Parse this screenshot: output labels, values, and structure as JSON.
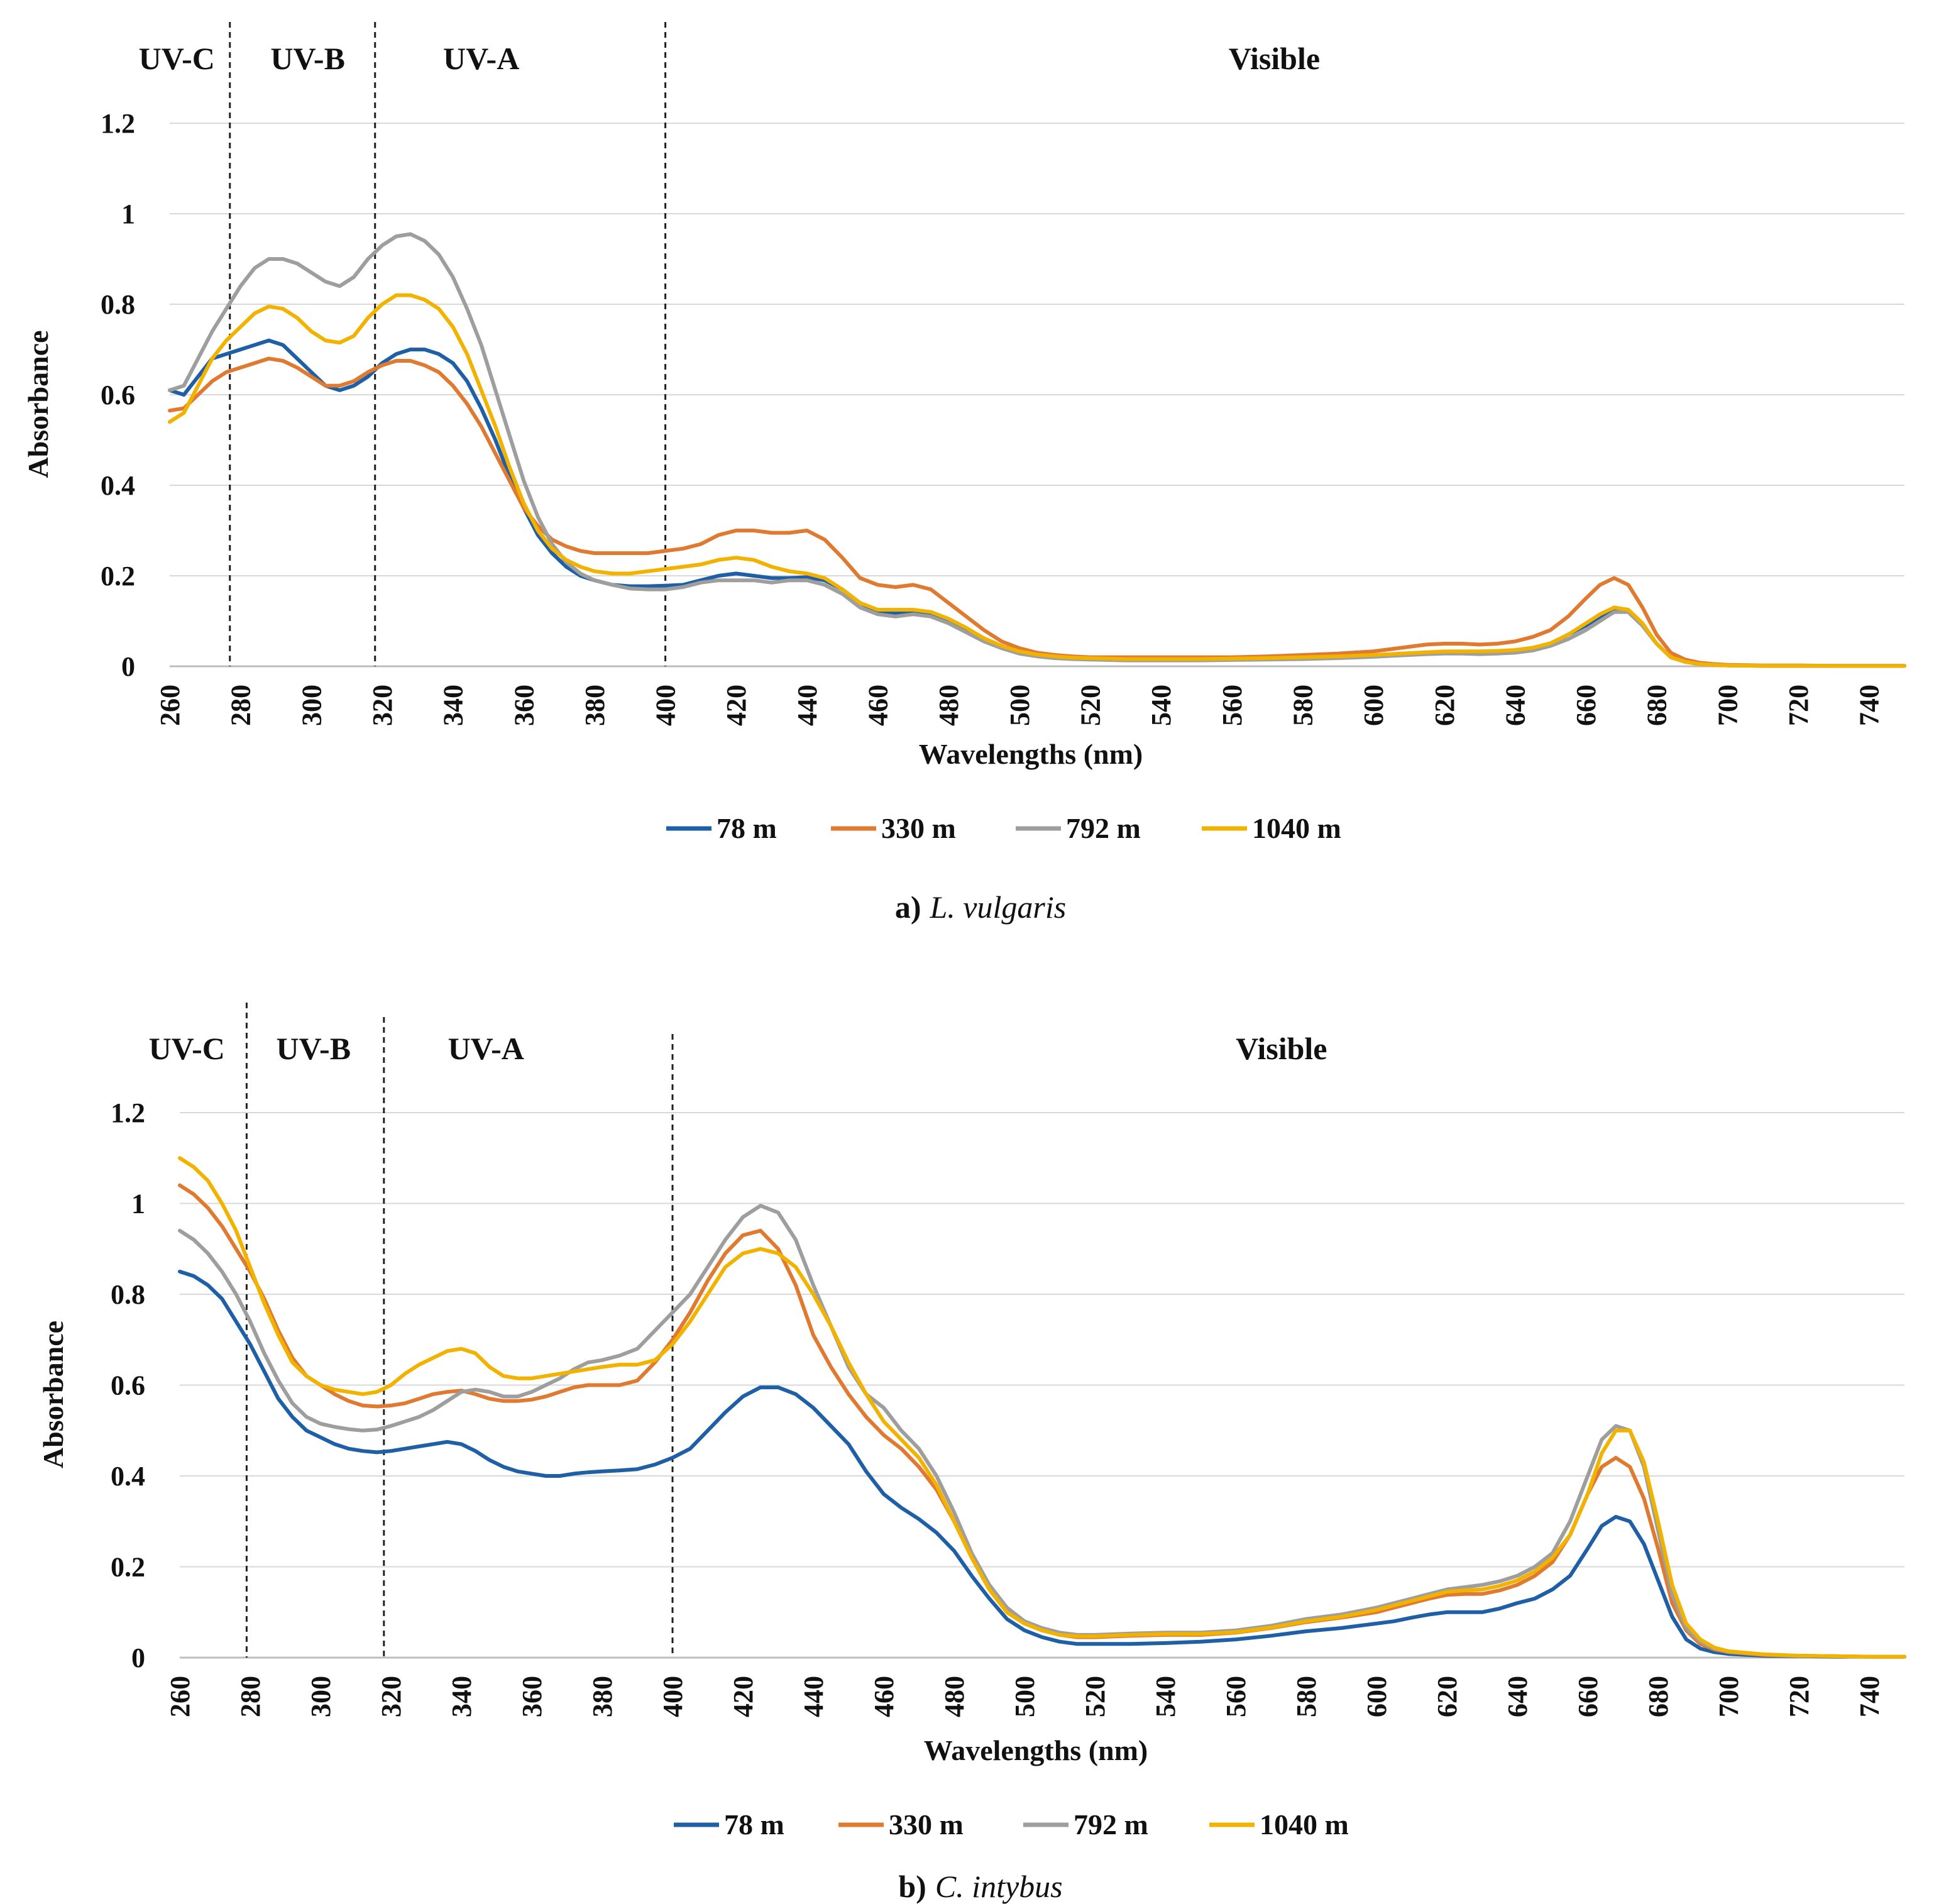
{
  "chart_data": [
    {
      "type": "line",
      "title": "",
      "caption_label": "a)",
      "caption_species": "L. vulgaris",
      "xlabel": "Wavelengths (nm)",
      "ylabel": "Absorbance",
      "xlim": [
        260,
        750
      ],
      "ylim": [
        0,
        1.2
      ],
      "x_ticks": [
        "260",
        "280",
        "300",
        "320",
        "340",
        "360",
        "380",
        "400",
        "420",
        "440",
        "460",
        "480",
        "500",
        "520",
        "540",
        "560",
        "580",
        "600",
        "620",
        "640",
        "660",
        "680",
        "700",
        "720",
        "740"
      ],
      "y_ticks": [
        "0",
        "0.2",
        "0.4",
        "0.6",
        "0.8",
        "1",
        "1.2"
      ],
      "y_tick_values": [
        0,
        0.2,
        0.4,
        0.6,
        0.8,
        1.0,
        1.2
      ],
      "grid": true,
      "legend": "bottom",
      "regions": [
        {
          "label": "UV-C",
          "center": 262
        },
        {
          "label": "UV-B",
          "center": 299
        },
        {
          "label": "UV-A",
          "center": 348
        },
        {
          "label": "Visible",
          "center": 572
        }
      ],
      "region_boundaries": [
        277,
        318,
        400
      ],
      "x": [
        260,
        264,
        268,
        272,
        276,
        280,
        284,
        288,
        292,
        296,
        300,
        304,
        308,
        312,
        316,
        320,
        324,
        328,
        332,
        336,
        340,
        344,
        348,
        352,
        356,
        360,
        364,
        368,
        372,
        376,
        380,
        385,
        390,
        395,
        400,
        405,
        410,
        415,
        420,
        425,
        430,
        435,
        440,
        445,
        450,
        455,
        460,
        465,
        470,
        475,
        480,
        485,
        490,
        495,
        500,
        505,
        510,
        515,
        520,
        530,
        540,
        550,
        560,
        570,
        580,
        590,
        600,
        605,
        610,
        615,
        620,
        625,
        630,
        635,
        640,
        645,
        650,
        655,
        660,
        664,
        668,
        672,
        676,
        680,
        684,
        688,
        692,
        696,
        700,
        710,
        720,
        730,
        740,
        750
      ],
      "series": [
        {
          "name": "78 m",
          "color": "#1f5fa6",
          "values": [
            0.61,
            0.6,
            0.64,
            0.68,
            0.69,
            0.7,
            0.71,
            0.72,
            0.71,
            0.68,
            0.65,
            0.62,
            0.61,
            0.62,
            0.64,
            0.67,
            0.69,
            0.7,
            0.7,
            0.69,
            0.67,
            0.63,
            0.57,
            0.5,
            0.42,
            0.35,
            0.29,
            0.25,
            0.22,
            0.2,
            0.19,
            0.18,
            0.177,
            0.177,
            0.178,
            0.18,
            0.19,
            0.2,
            0.205,
            0.2,
            0.195,
            0.195,
            0.197,
            0.19,
            0.17,
            0.14,
            0.12,
            0.117,
            0.12,
            0.115,
            0.1,
            0.08,
            0.06,
            0.045,
            0.03,
            0.025,
            0.022,
            0.02,
            0.018,
            0.015,
            0.015,
            0.015,
            0.016,
            0.017,
            0.019,
            0.021,
            0.024,
            0.026,
            0.028,
            0.03,
            0.032,
            0.032,
            0.032,
            0.033,
            0.035,
            0.04,
            0.05,
            0.07,
            0.09,
            0.11,
            0.125,
            0.12,
            0.09,
            0.05,
            0.02,
            0.01,
            0.005,
            0.003,
            0.002,
            0.001,
            0.001,
            0.001,
            0.001,
            0.001
          ]
        },
        {
          "name": "330 m",
          "color": "#e07a30",
          "values": [
            0.565,
            0.57,
            0.6,
            0.63,
            0.65,
            0.66,
            0.67,
            0.68,
            0.675,
            0.66,
            0.64,
            0.62,
            0.62,
            0.63,
            0.65,
            0.665,
            0.675,
            0.675,
            0.665,
            0.65,
            0.62,
            0.58,
            0.53,
            0.47,
            0.41,
            0.35,
            0.31,
            0.28,
            0.265,
            0.255,
            0.25,
            0.25,
            0.25,
            0.25,
            0.255,
            0.26,
            0.27,
            0.29,
            0.3,
            0.3,
            0.295,
            0.295,
            0.3,
            0.28,
            0.24,
            0.195,
            0.18,
            0.175,
            0.18,
            0.17,
            0.14,
            0.11,
            0.08,
            0.055,
            0.04,
            0.03,
            0.025,
            0.022,
            0.02,
            0.02,
            0.02,
            0.02,
            0.02,
            0.022,
            0.025,
            0.028,
            0.033,
            0.038,
            0.043,
            0.048,
            0.05,
            0.05,
            0.048,
            0.05,
            0.055,
            0.065,
            0.08,
            0.11,
            0.15,
            0.18,
            0.195,
            0.18,
            0.13,
            0.07,
            0.03,
            0.015,
            0.008,
            0.005,
            0.003,
            0.002,
            0.002,
            0.001,
            0.001,
            0.001
          ]
        },
        {
          "name": "792 m",
          "color": "#9e9e9e",
          "values": [
            0.61,
            0.62,
            0.68,
            0.74,
            0.79,
            0.84,
            0.88,
            0.9,
            0.9,
            0.89,
            0.87,
            0.85,
            0.84,
            0.86,
            0.9,
            0.93,
            0.95,
            0.955,
            0.94,
            0.91,
            0.86,
            0.79,
            0.71,
            0.61,
            0.51,
            0.41,
            0.33,
            0.27,
            0.23,
            0.205,
            0.19,
            0.18,
            0.172,
            0.17,
            0.17,
            0.175,
            0.185,
            0.19,
            0.19,
            0.19,
            0.185,
            0.19,
            0.19,
            0.18,
            0.16,
            0.13,
            0.115,
            0.11,
            0.115,
            0.11,
            0.095,
            0.075,
            0.055,
            0.04,
            0.028,
            0.022,
            0.018,
            0.016,
            0.015,
            0.013,
            0.013,
            0.013,
            0.014,
            0.015,
            0.016,
            0.018,
            0.021,
            0.023,
            0.025,
            0.027,
            0.028,
            0.028,
            0.027,
            0.028,
            0.03,
            0.035,
            0.045,
            0.06,
            0.08,
            0.1,
            0.12,
            0.12,
            0.09,
            0.05,
            0.02,
            0.01,
            0.005,
            0.003,
            0.002,
            0.001,
            0.001,
            0.001,
            0.001,
            0.001
          ]
        },
        {
          "name": "1040 m",
          "color": "#f2b300",
          "values": [
            0.54,
            0.56,
            0.62,
            0.68,
            0.72,
            0.75,
            0.78,
            0.795,
            0.79,
            0.77,
            0.74,
            0.72,
            0.715,
            0.73,
            0.77,
            0.8,
            0.82,
            0.82,
            0.81,
            0.79,
            0.75,
            0.69,
            0.61,
            0.53,
            0.44,
            0.36,
            0.3,
            0.26,
            0.235,
            0.22,
            0.21,
            0.205,
            0.205,
            0.21,
            0.215,
            0.22,
            0.225,
            0.235,
            0.24,
            0.235,
            0.22,
            0.21,
            0.205,
            0.195,
            0.17,
            0.14,
            0.125,
            0.125,
            0.125,
            0.12,
            0.105,
            0.085,
            0.062,
            0.045,
            0.033,
            0.026,
            0.022,
            0.019,
            0.018,
            0.016,
            0.016,
            0.016,
            0.017,
            0.018,
            0.02,
            0.022,
            0.025,
            0.027,
            0.029,
            0.031,
            0.033,
            0.033,
            0.033,
            0.034,
            0.036,
            0.041,
            0.051,
            0.07,
            0.095,
            0.115,
            0.13,
            0.125,
            0.095,
            0.05,
            0.02,
            0.01,
            0.005,
            0.003,
            0.002,
            0.001,
            0.001,
            0.001,
            0.001,
            0.001
          ]
        }
      ]
    },
    {
      "type": "line",
      "title": "",
      "caption_label": "b)",
      "caption_species": "C. intybus",
      "xlabel": "Wavelengths (nm)",
      "ylabel": "Absorbance",
      "xlim": [
        260,
        750
      ],
      "ylim": [
        0,
        1.2
      ],
      "x_ticks": [
        "260",
        "280",
        "300",
        "320",
        "340",
        "360",
        "380",
        "400",
        "420",
        "440",
        "460",
        "480",
        "500",
        "520",
        "540",
        "560",
        "580",
        "600",
        "620",
        "640",
        "660",
        "680",
        "700",
        "720",
        "740"
      ],
      "y_ticks": [
        "0",
        "0.2",
        "0.4",
        "0.6",
        "0.8",
        "1",
        "1.2"
      ],
      "y_tick_values": [
        0,
        0.2,
        0.4,
        0.6,
        0.8,
        1.0,
        1.2
      ],
      "grid": true,
      "legend": "bottom",
      "regions": [
        {
          "label": "UV-C",
          "center": 262
        },
        {
          "label": "UV-B",
          "center": 298
        },
        {
          "label": "UV-A",
          "center": 347
        },
        {
          "label": "Visible",
          "center": 573
        }
      ],
      "region_boundaries": [
        279,
        318,
        400
      ],
      "x": [
        260,
        264,
        268,
        272,
        276,
        280,
        284,
        288,
        292,
        296,
        300,
        304,
        308,
        312,
        316,
        320,
        324,
        328,
        332,
        336,
        340,
        344,
        348,
        352,
        356,
        360,
        364,
        368,
        372,
        376,
        380,
        385,
        390,
        395,
        400,
        405,
        410,
        415,
        420,
        425,
        430,
        435,
        440,
        445,
        450,
        455,
        460,
        465,
        470,
        475,
        480,
        485,
        490,
        495,
        500,
        505,
        510,
        515,
        520,
        530,
        540,
        550,
        560,
        570,
        580,
        590,
        600,
        605,
        610,
        615,
        620,
        625,
        630,
        635,
        640,
        645,
        650,
        655,
        660,
        664,
        668,
        672,
        676,
        680,
        684,
        688,
        692,
        696,
        700,
        710,
        720,
        730,
        740,
        750
      ],
      "series": [
        {
          "name": "78 m",
          "color": "#1f5fa6",
          "values": [
            0.85,
            0.84,
            0.82,
            0.79,
            0.74,
            0.69,
            0.63,
            0.57,
            0.53,
            0.5,
            0.485,
            0.47,
            0.46,
            0.455,
            0.452,
            0.455,
            0.46,
            0.465,
            0.47,
            0.475,
            0.47,
            0.455,
            0.435,
            0.42,
            0.41,
            0.405,
            0.4,
            0.4,
            0.405,
            0.408,
            0.41,
            0.412,
            0.415,
            0.425,
            0.44,
            0.46,
            0.5,
            0.54,
            0.575,
            0.595,
            0.595,
            0.58,
            0.55,
            0.51,
            0.47,
            0.41,
            0.36,
            0.33,
            0.305,
            0.275,
            0.235,
            0.18,
            0.13,
            0.085,
            0.06,
            0.045,
            0.035,
            0.03,
            0.03,
            0.03,
            0.032,
            0.035,
            0.04,
            0.048,
            0.058,
            0.065,
            0.075,
            0.08,
            0.088,
            0.095,
            0.1,
            0.1,
            0.1,
            0.108,
            0.12,
            0.13,
            0.15,
            0.18,
            0.24,
            0.29,
            0.31,
            0.3,
            0.25,
            0.17,
            0.09,
            0.04,
            0.02,
            0.012,
            0.008,
            0.004,
            0.003,
            0.002,
            0.002,
            0.002
          ]
        },
        {
          "name": "330 m",
          "color": "#e07a30",
          "values": [
            1.04,
            1.02,
            0.99,
            0.95,
            0.9,
            0.85,
            0.79,
            0.72,
            0.66,
            0.62,
            0.6,
            0.58,
            0.565,
            0.555,
            0.553,
            0.555,
            0.56,
            0.57,
            0.58,
            0.585,
            0.588,
            0.58,
            0.57,
            0.565,
            0.565,
            0.568,
            0.575,
            0.585,
            0.595,
            0.6,
            0.6,
            0.6,
            0.61,
            0.65,
            0.7,
            0.76,
            0.83,
            0.89,
            0.93,
            0.94,
            0.9,
            0.82,
            0.71,
            0.64,
            0.58,
            0.53,
            0.49,
            0.46,
            0.42,
            0.37,
            0.3,
            0.22,
            0.15,
            0.1,
            0.075,
            0.06,
            0.05,
            0.045,
            0.045,
            0.048,
            0.05,
            0.05,
            0.055,
            0.065,
            0.078,
            0.088,
            0.1,
            0.11,
            0.12,
            0.13,
            0.138,
            0.14,
            0.14,
            0.148,
            0.16,
            0.18,
            0.21,
            0.27,
            0.36,
            0.42,
            0.44,
            0.42,
            0.35,
            0.24,
            0.12,
            0.06,
            0.03,
            0.018,
            0.012,
            0.006,
            0.004,
            0.003,
            0.002,
            0.002
          ]
        },
        {
          "name": "792 m",
          "color": "#9e9e9e",
          "values": [
            0.94,
            0.92,
            0.89,
            0.85,
            0.8,
            0.74,
            0.67,
            0.61,
            0.56,
            0.53,
            0.515,
            0.508,
            0.503,
            0.5,
            0.502,
            0.51,
            0.52,
            0.53,
            0.545,
            0.565,
            0.585,
            0.59,
            0.585,
            0.575,
            0.575,
            0.585,
            0.6,
            0.615,
            0.635,
            0.65,
            0.655,
            0.665,
            0.68,
            0.72,
            0.76,
            0.8,
            0.86,
            0.92,
            0.97,
            0.995,
            0.98,
            0.92,
            0.82,
            0.73,
            0.64,
            0.58,
            0.55,
            0.5,
            0.46,
            0.4,
            0.32,
            0.23,
            0.16,
            0.11,
            0.08,
            0.065,
            0.055,
            0.05,
            0.05,
            0.053,
            0.055,
            0.055,
            0.06,
            0.07,
            0.085,
            0.095,
            0.11,
            0.12,
            0.13,
            0.14,
            0.15,
            0.155,
            0.16,
            0.168,
            0.18,
            0.2,
            0.23,
            0.3,
            0.4,
            0.48,
            0.51,
            0.5,
            0.42,
            0.28,
            0.14,
            0.065,
            0.035,
            0.02,
            0.013,
            0.007,
            0.004,
            0.003,
            0.002,
            0.002
          ]
        },
        {
          "name": "1040 m",
          "color": "#f2b300",
          "values": [
            1.1,
            1.08,
            1.05,
            1.0,
            0.94,
            0.86,
            0.78,
            0.71,
            0.65,
            0.62,
            0.6,
            0.59,
            0.585,
            0.58,
            0.585,
            0.6,
            0.625,
            0.645,
            0.66,
            0.675,
            0.68,
            0.67,
            0.64,
            0.62,
            0.615,
            0.615,
            0.62,
            0.625,
            0.63,
            0.635,
            0.64,
            0.645,
            0.645,
            0.655,
            0.69,
            0.74,
            0.8,
            0.86,
            0.89,
            0.9,
            0.89,
            0.86,
            0.8,
            0.73,
            0.65,
            0.58,
            0.52,
            0.48,
            0.44,
            0.38,
            0.3,
            0.22,
            0.15,
            0.1,
            0.075,
            0.06,
            0.05,
            0.047,
            0.047,
            0.05,
            0.052,
            0.052,
            0.056,
            0.066,
            0.08,
            0.09,
            0.105,
            0.115,
            0.125,
            0.135,
            0.145,
            0.148,
            0.15,
            0.158,
            0.17,
            0.19,
            0.22,
            0.27,
            0.36,
            0.45,
            0.5,
            0.5,
            0.43,
            0.3,
            0.16,
            0.075,
            0.04,
            0.022,
            0.014,
            0.007,
            0.004,
            0.003,
            0.002,
            0.002
          ]
        }
      ]
    }
  ]
}
